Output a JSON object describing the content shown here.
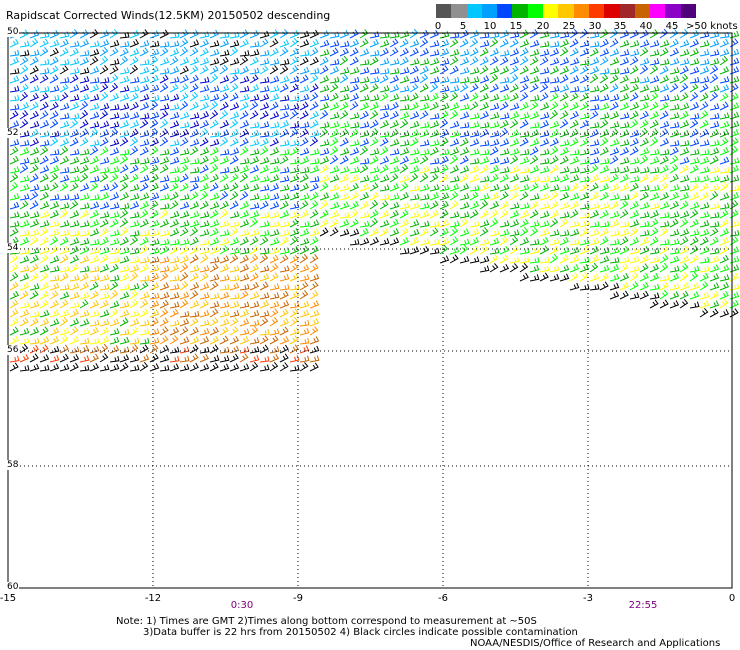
{
  "title": "Rapidscat Corrected Winds(12.5KM) 20150502 descending",
  "legend": {
    "labels": [
      "0",
      "5",
      "10",
      "15",
      "20",
      "25",
      "30",
      "35",
      "40",
      "45"
    ],
    "unit": ">50 knots",
    "colors": [
      "#555555",
      "#909090",
      "#00c8ff",
      "#00a0ff",
      "#0046ff",
      "#00b400",
      "#00ff00",
      "#ffff00",
      "#ffc800",
      "#ff8c00",
      "#ff3c00",
      "#dc0000",
      "#a02828",
      "#c86400",
      "#ff00ff",
      "#8c00c8",
      "#50007a"
    ]
  },
  "axes": {
    "x_ticks": [
      "-15",
      "-12",
      "-9",
      "-6",
      "-3",
      "0"
    ],
    "y_ticks": [
      "50",
      "52",
      "54",
      "56",
      "58",
      "60"
    ]
  },
  "pass_times": [
    "0:30",
    "22:55"
  ],
  "notes": [
    "Note: 1) Times are GMT 2)Times along bottom correspond to measurement at ~50S",
    "3)Data buffer is 22 hrs from 20150502 4) Black circles indicate possible contamination",
    "NOAA/NESDIS/Office of Research and Applications"
  ]
}
